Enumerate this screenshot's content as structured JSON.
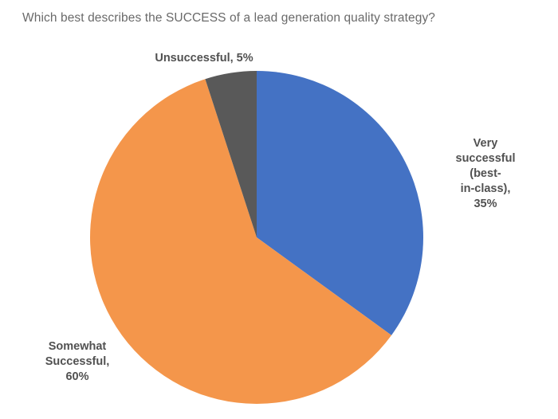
{
  "chart_data": {
    "type": "pie",
    "title": "Which best describes the SUCCESS of a lead generation quality strategy?",
    "categories": [
      "Very successful (best-in-class)",
      "Somewhat Successful",
      "Unsuccessful"
    ],
    "values": [
      35,
      60,
      5
    ],
    "unit": "%",
    "start_angle_deg_from_top": 0,
    "direction": "clockwise",
    "legend": "none",
    "labels_position": "outside",
    "slices": [
      {
        "label": "Very successful (best-in-class)",
        "value": 35,
        "color": "#4472C4",
        "display_label": "Very successful (best-\nin-class), 35%"
      },
      {
        "label": "Somewhat Successful",
        "value": 60,
        "color": "#F4964B",
        "display_label": "Somewhat\nSuccessful,\n60%"
      },
      {
        "label": "Unsuccessful",
        "value": 5,
        "color": "#595959",
        "display_label": "Unsuccessful, 5%"
      }
    ],
    "colors": {
      "title_text": "#6a6a6a",
      "label_text": "#515151",
      "background": "#ffffff"
    }
  }
}
